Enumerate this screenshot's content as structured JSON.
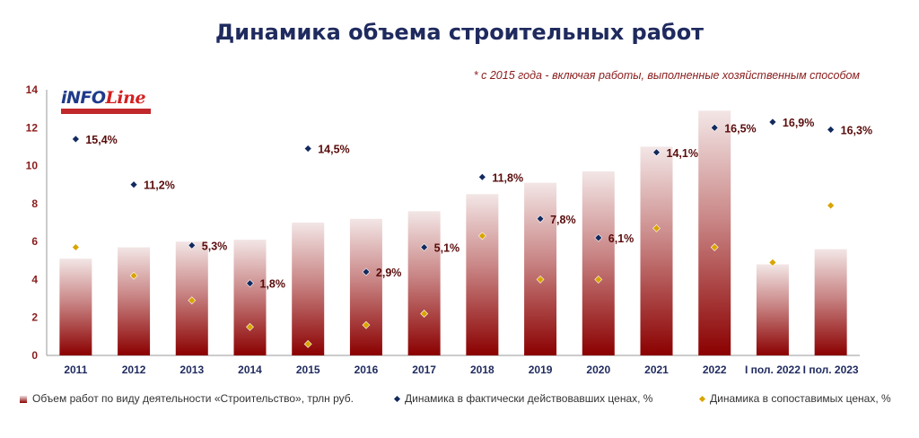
{
  "title": "Динамика объема строительных работ",
  "note": "* с 2015 года - включая работы, выполненные хозяйственным способом",
  "logo_text": "INFOLine",
  "colors": {
    "bar_top": "#f3e6e6",
    "bar_bottom": "#8b0000",
    "diamond_actual": "#132a5e",
    "diamond_comparable": "#d9a400",
    "title": "#1f2a5e"
  },
  "chart_data": {
    "type": "bar",
    "categories": [
      "2011",
      "2012",
      "2013",
      "2014",
      "2015",
      "2016",
      "2017",
      "2018",
      "2019",
      "2020",
      "2021",
      "2022",
      "I пол. 2022",
      "I пол. 2023"
    ],
    "ylim": [
      0,
      14
    ],
    "yticks": [
      0,
      2,
      4,
      6,
      8,
      10,
      12,
      14
    ],
    "grid": false,
    "legend_position": "bottom",
    "series": [
      {
        "name": "Объем работ по виду деятельности «Строительство», трлн руб.",
        "type": "bar",
        "values": [
          5.1,
          5.7,
          6.0,
          6.1,
          7.0,
          7.2,
          7.6,
          8.5,
          9.1,
          9.7,
          11.0,
          12.9,
          4.8,
          5.6
        ]
      },
      {
        "name": "Динамика в фактически действовавших  ценах, %",
        "type": "scatter",
        "values": [
          11.4,
          9.0,
          5.8,
          3.8,
          10.9,
          4.4,
          5.7,
          9.4,
          7.2,
          6.2,
          10.7,
          12.0,
          12.3,
          11.9
        ],
        "labels": [
          "15,4%",
          "11,2%",
          "5,3%",
          "1,8%",
          "14,5%",
          "2,9%",
          "5,1%",
          "11,8%",
          "7,8%",
          "6,1%",
          "14,1%",
          "16,5%",
          "16,9%",
          "16,3%"
        ]
      },
      {
        "name": "Динамика в сопоставимых ценах, %",
        "type": "scatter",
        "values": [
          5.7,
          4.2,
          2.9,
          1.5,
          0.6,
          1.6,
          2.2,
          6.3,
          4.0,
          4.0,
          6.7,
          5.7,
          4.9,
          7.9
        ]
      }
    ]
  }
}
